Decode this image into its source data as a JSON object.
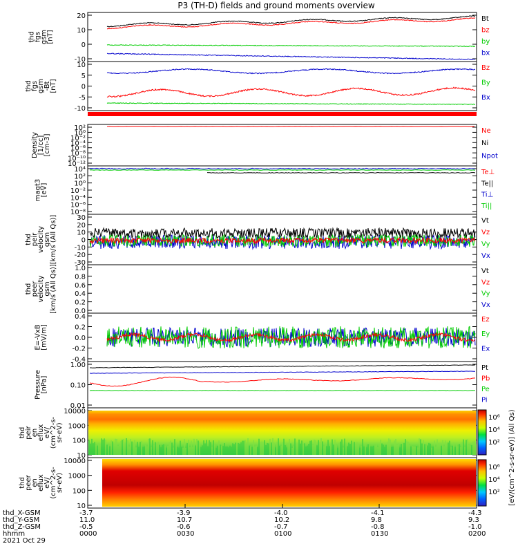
{
  "title": "P3 (TH-D) fields and ground moments overview",
  "colors": {
    "black": "#000000",
    "red": "#ff0000",
    "green": "#00cc00",
    "blue": "#0000cc"
  },
  "panels": [
    {
      "id": "fgs_gsm",
      "ylabel": [
        "thd",
        "fgs",
        "gsm",
        "[nT]"
      ],
      "ticks": [
        "20",
        "10",
        "0",
        "-10"
      ],
      "legend": [
        "Bt",
        "bz",
        "by",
        "bx"
      ],
      "legend_colors": [
        "#000000",
        "#ff0000",
        "#00cc00",
        "#0000cc"
      ]
    },
    {
      "id": "fgs_gse",
      "ylabel": [
        "thd",
        "fgs",
        "gsm",
        "-Bt",
        "[nT]"
      ],
      "ticks": [
        "10",
        "5",
        "0",
        "-5",
        "-10"
      ],
      "legend": [
        "Bz",
        "By",
        "Bx"
      ],
      "legend_colors": [
        "#ff0000",
        "#00cc00",
        "#0000cc"
      ]
    },
    {
      "id": "density",
      "ylabel": [
        "Density",
        "[1/cc]",
        "[cm-3]"
      ],
      "ticks": [
        "10²",
        "10⁰",
        "10⁻²",
        "10⁻⁴",
        "10⁻⁶",
        "10⁻⁸",
        "10⁻¹⁰",
        "10⁻¹²"
      ],
      "legend": [
        "Ne",
        "Ni",
        "Npot"
      ],
      "legend_colors": [
        "#ff0000",
        "#000000",
        "#0000cc"
      ]
    },
    {
      "id": "temp",
      "ylabel": [
        "magt3",
        "[eV]"
      ],
      "ticks": [
        "10⁴",
        "10²",
        "10⁰",
        "10⁻²",
        "10⁻⁴",
        "10⁻⁶",
        "10⁻⁸"
      ],
      "legend": [
        "Te⊥",
        "Te||",
        "Ti⊥",
        "Ti||"
      ],
      "legend_colors": [
        "#ff0000",
        "#000000",
        "#0000cc",
        "#00cc00"
      ]
    },
    {
      "id": "peir_vel",
      "ylabel": [
        "thd",
        "peir",
        "velocity",
        "gsm",
        "[km/s (All Qs)]"
      ],
      "ticks": [
        "30",
        "20",
        "10",
        "0",
        "-10",
        "-20",
        "-30"
      ],
      "legend": [
        "Vt",
        "Vz",
        "Vy",
        "Vx"
      ],
      "legend_colors": [
        "#000000",
        "#ff0000",
        "#00cc00",
        "#0000cc"
      ]
    },
    {
      "id": "peer_vel",
      "ylabel": [
        "thd",
        "peer",
        "velocity",
        "gsm",
        "[km/s (All Qs)]"
      ],
      "ticks": [
        "1.0",
        "0.8",
        "0.6",
        "0.4",
        "0.2",
        "0.0"
      ],
      "legend": [
        "Vt",
        "Vz",
        "Vy",
        "Vx"
      ],
      "legend_colors": [
        "#000000",
        "#ff0000",
        "#00cc00",
        "#0000cc"
      ]
    },
    {
      "id": "efield",
      "ylabel": [
        "E=-VxB",
        "[mV/m]"
      ],
      "ticks": [
        "0.4",
        "0.2",
        "0.0",
        "-0.2",
        "-0.4"
      ],
      "legend": [
        "Ez",
        "Ey",
        "Ex"
      ],
      "legend_colors": [
        "#ff0000",
        "#00cc00",
        "#0000cc"
      ]
    },
    {
      "id": "pressure",
      "ylabel": [
        "Pressure",
        "[nPa]"
      ],
      "ticks": [
        "1.00",
        "0.10",
        "0.01"
      ],
      "legend": [
        "Pt",
        "Pb",
        "Pe",
        "Pi"
      ],
      "legend_colors": [
        "#000000",
        "#ff0000",
        "#00cc00",
        "#0000cc"
      ]
    },
    {
      "id": "peir_en",
      "ylabel": [
        "thd",
        "peir",
        "en",
        "eflux",
        "eV/",
        "(cm^2-s-",
        "sr-eV)"
      ],
      "ticks": [
        "10000",
        "1000",
        "100",
        "10"
      ]
    },
    {
      "id": "peer_en",
      "ylabel": [
        "thd",
        "peer",
        "en",
        "eflux",
        "eV/",
        "(cm^2-s-",
        "sr-eV)"
      ],
      "ticks": [
        "10000",
        "1000",
        "100",
        "10"
      ]
    }
  ],
  "colorbar": {
    "ticks": [
      "10⁶",
      "10⁴",
      "10²"
    ],
    "label": "[eV/(cm^2-s-sr-eV)] (All Qs)"
  },
  "xaxis": {
    "rows": [
      {
        "label": "thd_X-GSM",
        "values": [
          "-3.7",
          "-3.9",
          "-4.0",
          "-4.1",
          "-4.3"
        ]
      },
      {
        "label": "thd_Y-GSM",
        "values": [
          "11.0",
          "10.7",
          "10.2",
          "9.8",
          "9.3"
        ]
      },
      {
        "label": "thd_Z-GSM",
        "values": [
          "-0.5",
          "-0.6",
          "-0.7",
          "-0.8",
          "-1.0"
        ]
      },
      {
        "label": "hhmm",
        "values": [
          "0000",
          "0030",
          "0100",
          "0130",
          "0200"
        ]
      }
    ],
    "date": "2021 Oct 29"
  },
  "chart_data": {
    "type": "line",
    "title": "P3 (TH-D) fields and ground moments overview",
    "x": [
      "0000",
      "0030",
      "0100",
      "0130",
      "0200"
    ],
    "xlabel": "hhmm",
    "series": [
      {
        "name": "Bt",
        "values": [
          15,
          14,
          16,
          18,
          21
        ]
      },
      {
        "name": "bz",
        "values": [
          14,
          13,
          15,
          17,
          18
        ]
      },
      {
        "name": "by",
        "values": [
          0,
          -1,
          -1,
          -1,
          -1
        ]
      },
      {
        "name": "bx",
        "values": [
          -6,
          -5,
          -6,
          -7,
          -10
        ]
      },
      {
        "name": "Pt",
        "values": [
          0.5,
          0.55,
          0.6,
          0.6,
          0.65
        ]
      },
      {
        "name": "Pb",
        "values": [
          0.15,
          0.09,
          0.12,
          0.14,
          0.16
        ]
      },
      {
        "name": "Pe",
        "values": [
          0.05,
          0.05,
          0.05,
          0.05,
          0.05
        ]
      },
      {
        "name": "Pi",
        "values": [
          0.33,
          0.35,
          0.36,
          0.38,
          0.4
        ]
      }
    ]
  }
}
